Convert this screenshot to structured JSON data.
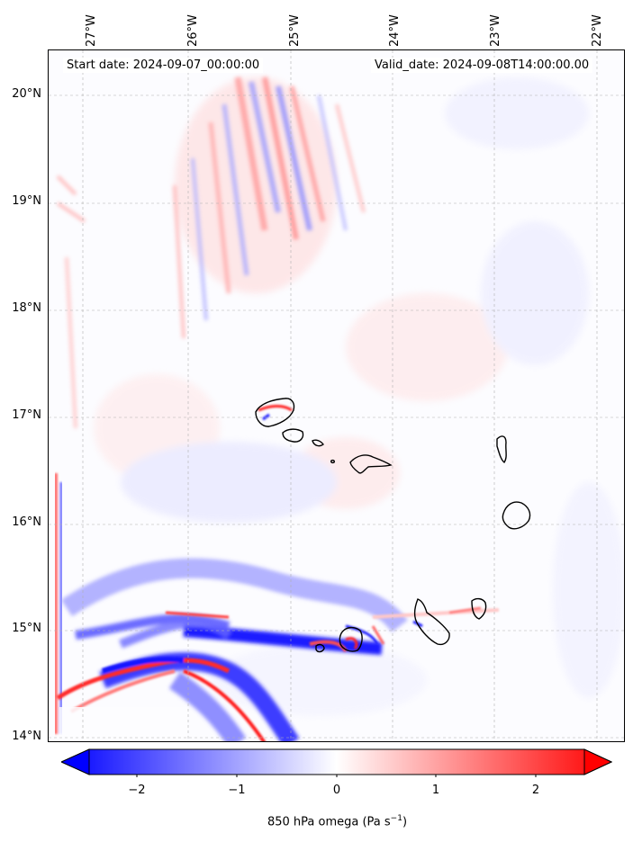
{
  "header": {
    "start_date": "Start date: 2024-09-07_00:00:00",
    "valid_date": "Valid_date: 2024-09-08T14:00:00.00"
  },
  "latitude_labels": [
    "20°N",
    "19°N",
    "18°N",
    "17°N",
    "16°N",
    "15°N",
    "14°N"
  ],
  "longitude_labels": [
    "27°W",
    "26°W",
    "25°W",
    "24°W",
    "23°W",
    "22°W"
  ],
  "colorbar": {
    "ticks": [
      "−2",
      "−1",
      "0",
      "1",
      "2"
    ],
    "title_main": "850 hPa omega (Pa s",
    "title_sup": "−1",
    "title_end": ")",
    "range": [
      -2.6,
      2.6
    ],
    "colors": {
      "negative": "#0000ff",
      "neutral": "#ffffff",
      "positive": "#ff0000"
    }
  },
  "map": {
    "extent": {
      "lon": [
        -27.33,
        -21.67
      ],
      "lat": [
        13.95,
        20.45
      ]
    },
    "field": "850 hPa omega",
    "gridlines": true
  }
}
